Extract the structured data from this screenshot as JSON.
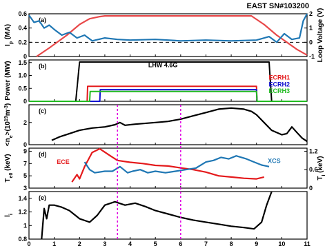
{
  "title": "EAST SN#103200",
  "chart_data": [
    {
      "type": "line",
      "panel": "(a)",
      "ylabel": "I_p (MA)",
      "ylabel_right": "Loop Voltage (V)",
      "ylim": [
        0,
        0.6
      ],
      "yticks": [
        "0",
        "0.2",
        "0.4",
        "0.6"
      ],
      "ylim_right": [
        -1,
        2
      ],
      "yticks_right": [
        "-1",
        "0",
        "1",
        "2"
      ],
      "reference_line": 0.2,
      "colors": {
        "ip": "#e8494a",
        "loop": "#1f77b4"
      },
      "series": [
        {
          "name": "",
          "axis": "left",
          "x": [
            0.3,
            0.8,
            1.5,
            2.0,
            2.4,
            2.8,
            3.0,
            8.8,
            9.3,
            9.8,
            10.2,
            10.6,
            11.0
          ],
          "y": [
            0.0,
            0.12,
            0.3,
            0.45,
            0.53,
            0.56,
            0.57,
            0.57,
            0.45,
            0.3,
            0.2,
            0.1,
            0.02
          ]
        },
        {
          "name": "",
          "axis": "right",
          "x": [
            0.0,
            0.2,
            0.4,
            0.6,
            0.8,
            1.0,
            1.3,
            1.6,
            1.9,
            2.2,
            2.5,
            3.0,
            3.5,
            4.0,
            5.0,
            6.0,
            7.0,
            8.0,
            9.0,
            9.5,
            9.8,
            10.1,
            10.4,
            10.7,
            10.85,
            11.0
          ],
          "y": [
            1.9,
            1.4,
            1.5,
            1.0,
            1.2,
            0.9,
            0.5,
            0.7,
            0.3,
            0.5,
            0.1,
            0.3,
            0.2,
            0.15,
            0.2,
            0.1,
            0.15,
            0.1,
            0.15,
            0.4,
            0.0,
            0.6,
            0.2,
            0.3,
            1.5,
            2.0
          ]
        }
      ]
    },
    {
      "type": "line",
      "panel": "(b)",
      "ylabel": "Power (MW)",
      "ylim": [
        0,
        1.6
      ],
      "yticks": [
        "0",
        "0.5",
        "1.0",
        "1.5"
      ],
      "annotations": [
        {
          "text": "LHW 4.6G",
          "color": "#000000"
        },
        {
          "text": "ECRH1",
          "color": "#e41a1c"
        },
        {
          "text": "ECRH2",
          "color": "#1010d0"
        },
        {
          "text": "ECRH3",
          "color": "#22bb22"
        }
      ],
      "series": [
        {
          "name": "LHW 4.6G",
          "color": "#000000",
          "x": [
            0,
            1.85,
            2.0,
            9.5,
            9.6,
            11
          ],
          "y": [
            0,
            0,
            1.52,
            1.52,
            0,
            0
          ]
        },
        {
          "name": "ECRH1",
          "color": "#e41a1c",
          "x": [
            0,
            2.3,
            2.32,
            9.0,
            9.02,
            11
          ],
          "y": [
            0,
            0,
            0.58,
            0.58,
            0,
            0
          ]
        },
        {
          "name": "ECRH2",
          "color": "#1010d0",
          "x": [
            0,
            2.8,
            2.82,
            9.0,
            9.02,
            11
          ],
          "y": [
            0,
            0,
            0.45,
            0.45,
            0,
            0
          ]
        },
        {
          "name": "ECRH3",
          "color": "#22bb22",
          "x": [
            0,
            2.4,
            2.42,
            9.0,
            9.02,
            11
          ],
          "y": [
            0,
            0,
            0.38,
            0.38,
            0,
            0
          ]
        }
      ]
    },
    {
      "type": "line",
      "panel": "(c)",
      "ylabel": "<n_e>(10^19 m^-3)",
      "ylim": [
        0,
        3.6
      ],
      "yticks": [
        "0",
        "2"
      ],
      "series": [
        {
          "name": "",
          "color": "#000000",
          "x": [
            0.9,
            1.2,
            1.6,
            2.0,
            2.5,
            3.0,
            3.4,
            3.6,
            3.8,
            4.2,
            5.0,
            5.5,
            6.0,
            6.5,
            7.0,
            7.5,
            8.0,
            8.5,
            8.8,
            9.0,
            9.3,
            9.6,
            10.0,
            10.2,
            10.4,
            10.6,
            10.8,
            11.0
          ],
          "y": [
            0.4,
            0.7,
            1.0,
            1.3,
            1.5,
            1.6,
            1.8,
            2.0,
            1.75,
            1.85,
            2.0,
            2.1,
            2.3,
            2.6,
            2.9,
            3.2,
            3.3,
            3.2,
            3.0,
            2.7,
            2.0,
            1.3,
            0.9,
            1.0,
            1.6,
            1.1,
            0.6,
            0.3
          ]
        }
      ]
    },
    {
      "type": "line",
      "panel": "(d)",
      "ylabel": "T_e0 (keV)",
      "ylabel_right": "T_i (keV)",
      "ylim": [
        3,
        9.5
      ],
      "yticks": [
        "3",
        "5",
        "7",
        "9"
      ],
      "ylim_right": [
        0,
        1.3
      ],
      "yticks_right": [
        "0",
        "0.6",
        "1.2"
      ],
      "annotations": [
        {
          "text": "ECE",
          "color": "#e41a1c"
        },
        {
          "text": "XCS",
          "color": "#1f77b4"
        }
      ],
      "series": [
        {
          "name": "ECE",
          "axis": "left",
          "color": "#e41a1c",
          "x": [
            1.7,
            1.9,
            2.0,
            2.2,
            2.5,
            2.8,
            3.2,
            3.5,
            4.0,
            4.5,
            5.0,
            5.5,
            6.0,
            6.5,
            7.0,
            7.5,
            8.0,
            8.5,
            9.0,
            9.3
          ],
          "y": [
            4.0,
            5.2,
            4.5,
            6.5,
            8.8,
            9.4,
            8.3,
            7.5,
            7.2,
            7.0,
            6.7,
            6.6,
            6.3,
            6.0,
            5.6,
            5.0,
            4.8,
            4.6,
            4.5,
            4.8
          ]
        },
        {
          "name": "XCS",
          "axis": "right",
          "color": "#1f77b4",
          "x": [
            2.2,
            2.4,
            2.6,
            3.0,
            3.3,
            3.6,
            3.9,
            4.1,
            4.4,
            4.7,
            5.0,
            5.4,
            5.8,
            6.2,
            6.6,
            7.0,
            7.3,
            7.6,
            7.9,
            8.2,
            8.6,
            8.9,
            9.2,
            9.5
          ],
          "y": [
            0.85,
            0.6,
            0.5,
            0.55,
            0.55,
            0.7,
            0.5,
            0.55,
            0.6,
            0.5,
            0.55,
            0.5,
            0.55,
            0.6,
            0.65,
            0.85,
            0.9,
            1.0,
            0.95,
            1.05,
            0.95,
            0.85,
            0.75,
            0.7
          ]
        }
      ]
    },
    {
      "type": "line",
      "panel": "(e)",
      "ylabel": "l_i",
      "ylim": [
        0.8,
        1.5
      ],
      "yticks": [
        "0.8",
        "1",
        "1.2",
        "1.4"
      ],
      "xlim": [
        0,
        11
      ],
      "xticks": [
        "0",
        "1",
        "2",
        "3",
        "4",
        "5",
        "6",
        "7",
        "8",
        "9",
        "10",
        "11"
      ],
      "series": [
        {
          "name": "",
          "color": "#000000",
          "x": [
            0.5,
            0.6,
            0.7,
            0.8,
            1.0,
            1.3,
            1.6,
            2.0,
            2.4,
            2.7,
            3.0,
            3.4,
            3.8,
            4.2,
            4.6,
            5.0,
            5.5,
            6.0,
            6.5,
            7.0,
            7.5,
            8.0,
            8.5,
            8.9,
            9.2,
            9.4,
            9.6
          ],
          "y": [
            0.8,
            1.25,
            1.1,
            1.3,
            1.3,
            1.27,
            1.22,
            1.1,
            1.05,
            1.15,
            1.3,
            1.35,
            1.3,
            1.33,
            1.28,
            1.22,
            1.17,
            1.12,
            1.08,
            1.05,
            1.02,
            0.99,
            0.97,
            0.95,
            1.05,
            1.3,
            1.5
          ]
        }
      ]
    }
  ],
  "markers": {
    "color": "#e000e0",
    "x": [
      3.5,
      6.0
    ]
  }
}
